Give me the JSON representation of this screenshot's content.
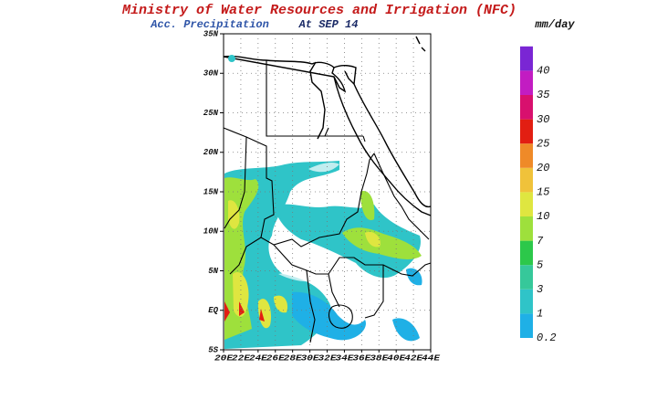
{
  "header": {
    "title": "Ministry of Water Resources and Irrigation (NFC)",
    "subtitle": "Acc. Precipitation",
    "date": "At SEP 14"
  },
  "map": {
    "lat_labels": [
      "35N",
      "30N",
      "25N",
      "20N",
      "15N",
      "10N",
      "5N",
      "EQ",
      "5S"
    ],
    "lon_labels": [
      "20E",
      "22E",
      "24E",
      "26E",
      "28E",
      "30E",
      "32E",
      "34E",
      "36E",
      "38E",
      "40E",
      "42E",
      "44E"
    ]
  },
  "colorbar": {
    "unit": "mm/day",
    "levels": [
      0.2,
      1,
      3,
      5,
      7,
      10,
      15,
      20,
      25,
      30,
      35,
      40
    ],
    "colors": [
      "#1fb0e6",
      "#2fc4c8",
      "#36c89a",
      "#2cc84a",
      "#9ee03c",
      "#dfe640",
      "#f0c23a",
      "#ef8a28",
      "#e21e12",
      "#d8106e",
      "#c21cc2",
      "#7a26d4"
    ]
  }
}
